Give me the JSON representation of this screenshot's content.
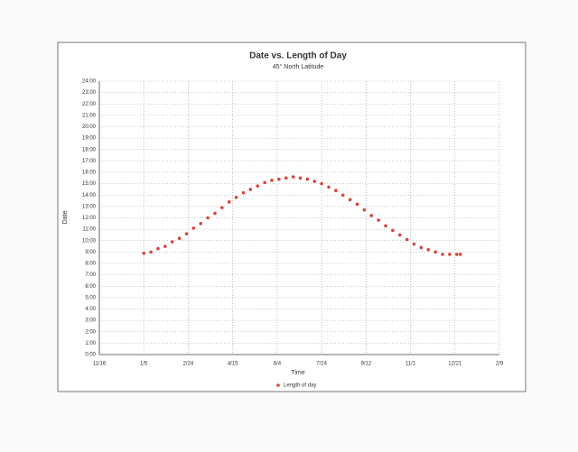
{
  "chart_data": {
    "type": "scatter",
    "title": "Date vs. Length of Day",
    "subtitle": "45° North Latitude",
    "x_label": "Time",
    "y_label": "Date",
    "grid": true,
    "legend": "bottom",
    "xlim": [
      -45,
      405
    ],
    "xticks": [
      {
        "value": -45,
        "label": "11/16"
      },
      {
        "value": 5,
        "label": "1/5"
      },
      {
        "value": 55,
        "label": "2/24"
      },
      {
        "value": 105,
        "label": "4/15"
      },
      {
        "value": 155,
        "label": "6/4"
      },
      {
        "value": 205,
        "label": "7/24"
      },
      {
        "value": 255,
        "label": "9/12"
      },
      {
        "value": 305,
        "label": "11/1"
      },
      {
        "value": 355,
        "label": "12/21"
      },
      {
        "value": 405,
        "label": "2/9"
      }
    ],
    "ylim": [
      0,
      24
    ],
    "yticks": [
      {
        "value": 0,
        "label": "0:00"
      },
      {
        "value": 1,
        "label": "1:00"
      },
      {
        "value": 2,
        "label": "2:00"
      },
      {
        "value": 3,
        "label": "3:00"
      },
      {
        "value": 4,
        "label": "4:00"
      },
      {
        "value": 5,
        "label": "5:00"
      },
      {
        "value": 6,
        "label": "6:00"
      },
      {
        "value": 7,
        "label": "7:00"
      },
      {
        "value": 8,
        "label": "8:00"
      },
      {
        "value": 9,
        "label": "9:00"
      },
      {
        "value": 10,
        "label": "10:00"
      },
      {
        "value": 11,
        "label": "11:00"
      },
      {
        "value": 12,
        "label": "12:00"
      },
      {
        "value": 13,
        "label": "13:00"
      },
      {
        "value": 14,
        "label": "14:00"
      },
      {
        "value": 15,
        "label": "15:00"
      },
      {
        "value": 16,
        "label": "16:00"
      },
      {
        "value": 17,
        "label": "17:00"
      },
      {
        "value": 18,
        "label": "18:00"
      },
      {
        "value": 19,
        "label": "19:00"
      },
      {
        "value": 20,
        "label": "20:00"
      },
      {
        "value": 21,
        "label": "21:00"
      },
      {
        "value": 22,
        "label": "22:00"
      },
      {
        "value": 23,
        "label": "23:00"
      },
      {
        "value": 24,
        "label": "24:00"
      }
    ],
    "x": [
      5,
      13,
      21,
      29,
      37,
      45,
      53,
      61,
      69,
      77,
      85,
      93,
      101,
      109,
      117,
      125,
      133,
      141,
      149,
      157,
      165,
      173,
      181,
      189,
      197,
      205,
      213,
      221,
      229,
      237,
      245,
      253,
      261,
      269,
      277,
      285,
      293,
      301,
      309,
      317,
      325,
      333,
      341,
      349,
      357,
      361
    ],
    "series": [
      {
        "name": "Length of day",
        "color": "#d9433a",
        "values": [
          8.9,
          9.0,
          9.3,
          9.5,
          9.9,
          10.2,
          10.6,
          11.1,
          11.5,
          12.0,
          12.4,
          12.9,
          13.4,
          13.8,
          14.2,
          14.5,
          14.8,
          15.1,
          15.3,
          15.4,
          15.5,
          15.6,
          15.5,
          15.4,
          15.2,
          15.0,
          14.7,
          14.4,
          14.0,
          13.6,
          13.2,
          12.7,
          12.2,
          11.8,
          11.3,
          10.9,
          10.5,
          10.1,
          9.7,
          9.4,
          9.2,
          9.0,
          8.8,
          8.8,
          8.8,
          8.8
        ]
      }
    ]
  }
}
